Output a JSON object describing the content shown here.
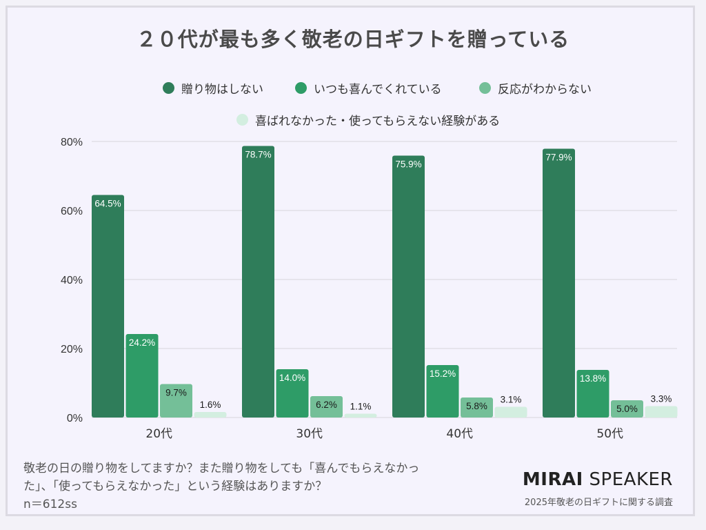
{
  "title": "２０代が最も多く敬老の日ギフトを贈っている",
  "footer": {
    "question_line1": "敬老の日の贈り物をしてますか？また贈り物をしても「喜んでもらえなかっ",
    "question_line2": "た」、「使ってもらえなかった」という経験はありますか？",
    "sample": "n＝612ss",
    "brand_bold": "MIRAI",
    "brand_light": "SPEAKER",
    "brand_sub": "2025年敬老の日ギフトに関する調査"
  },
  "chart_data": {
    "type": "bar",
    "title": "２０代が最も多く敬老の日ギフトを贈っている",
    "categories": [
      "20代",
      "30代",
      "40代",
      "50代"
    ],
    "series": [
      {
        "name": "贈り物はしない",
        "color": "#2f7d5a",
        "values": [
          64.5,
          78.7,
          75.9,
          77.9
        ]
      },
      {
        "name": "いつも喜んでくれている",
        "color": "#2e9c67",
        "values": [
          24.2,
          14.0,
          15.2,
          13.8
        ]
      },
      {
        "name": "反応がわからない",
        "color": "#74bf98",
        "values": [
          9.7,
          6.2,
          5.8,
          5.0
        ]
      },
      {
        "name": "喜ばれなかった・使ってもらえない経験がある",
        "color": "#d3eee0",
        "values": [
          1.6,
          1.1,
          3.1,
          3.3
        ]
      }
    ],
    "yticks": [
      "0%",
      "20%",
      "40%",
      "60%",
      "80%"
    ],
    "ylim": [
      0,
      80
    ],
    "grid": true,
    "legend_position": "top",
    "data_labels": true
  }
}
